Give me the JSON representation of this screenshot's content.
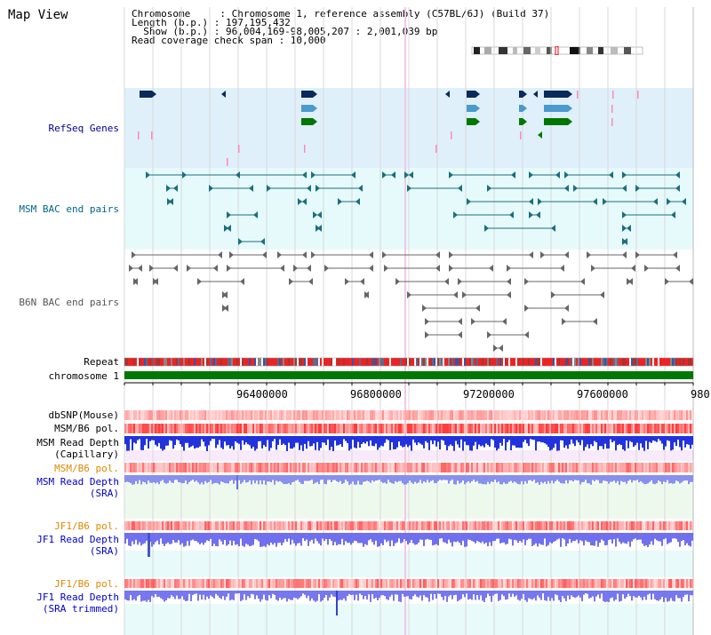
{
  "header": {
    "title": "Map View",
    "info_lines": [
      "Chromosome     : Chromosome 1, reference assembly (C57BL/6J) (Build 37)",
      "Length (b.p.) : 197,195,432",
      "  Show (b.p.) : 96,004,169-98,005,207 : 2,001,039 bp",
      "Read coverage check span : 10,000"
    ]
  },
  "tracks": {
    "refseq": "RefSeq Genes",
    "msm_bac": "MSM BAC end pairs",
    "b6n_bac": "B6N BAC end pairs",
    "repeat": "Repeat",
    "chromosome": "chromosome 1",
    "dbsnp": "dbSNP(Mouse)",
    "msm_b6_pol_1": "MSM/B6 pol.",
    "msm_read_depth_cap_1": "MSM Read Depth",
    "msm_read_depth_cap_2": "(Capillary)",
    "msm_b6_pol_2": "MSM/B6 pol.",
    "msm_read_depth_sra_1": "MSM Read Depth",
    "msm_read_depth_sra_2": "(SRA)",
    "jf1_b6_pol_1": "JF1/B6 pol.",
    "jf1_read_depth_sra_1": "JF1 Read Depth",
    "jf1_read_depth_sra_2": "(SRA)",
    "jf1_b6_pol_2": "JF1/B6 pol.",
    "jf1_read_depth_trim_1": "JF1 Read Depth",
    "jf1_read_depth_trim_2": "(SRA trimmed)"
  },
  "axis": {
    "ticks": [
      "96400000",
      "96800000",
      "97200000",
      "97600000",
      "980"
    ]
  },
  "colors": {
    "refseq_label": "#000099",
    "msm_label": "#006688",
    "b6n_label": "#555555",
    "orange_label": "#dd8800",
    "blue_label": "#0000cc",
    "chromosome_bar": "#007700",
    "repeat_red": "#ee2222"
  }
}
